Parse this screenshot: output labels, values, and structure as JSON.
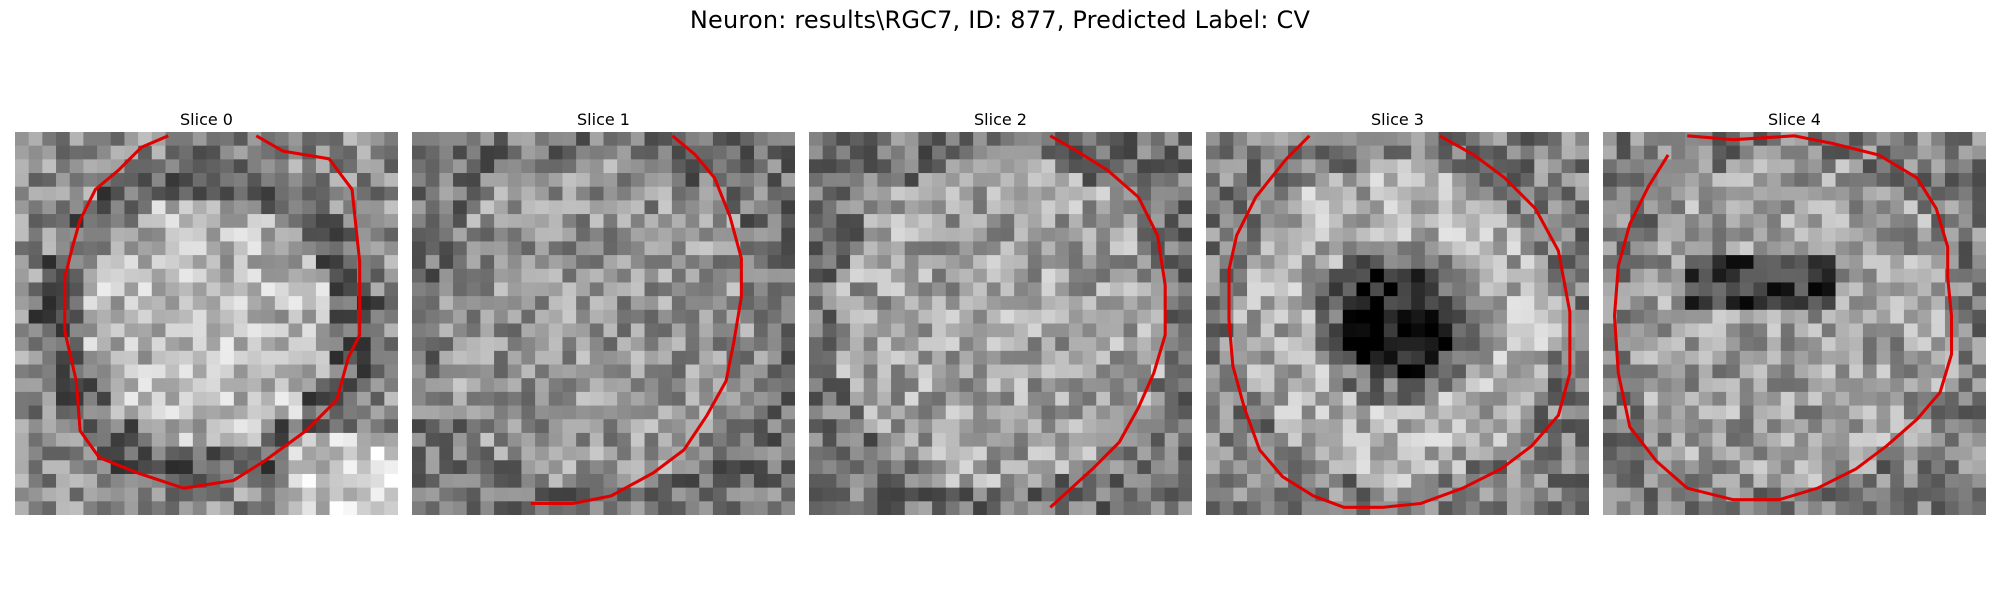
{
  "figure": {
    "title": "Neuron: results\\RGC7, ID: 877, Predicted Label: CV"
  },
  "contour_color": "#e00000",
  "panels": [
    {
      "label": "Slice 0",
      "tone": "bright-center",
      "contour": [
        [
          0.63,
          0.01
        ],
        [
          0.7,
          0.05
        ],
        [
          0.82,
          0.07
        ],
        [
          0.88,
          0.15
        ],
        [
          0.9,
          0.34
        ],
        [
          0.9,
          0.53
        ],
        [
          0.87,
          0.59
        ],
        [
          0.84,
          0.7
        ],
        [
          0.76,
          0.78
        ],
        [
          0.65,
          0.86
        ],
        [
          0.57,
          0.91
        ],
        [
          0.44,
          0.93
        ],
        [
          0.32,
          0.89
        ],
        [
          0.22,
          0.85
        ],
        [
          0.17,
          0.78
        ],
        [
          0.16,
          0.65
        ],
        [
          0.13,
          0.52
        ],
        [
          0.13,
          0.38
        ],
        [
          0.15,
          0.3
        ],
        [
          0.17,
          0.23
        ],
        [
          0.21,
          0.15
        ],
        [
          0.27,
          0.1
        ],
        [
          0.33,
          0.04
        ],
        [
          0.4,
          0.01
        ]
      ]
    },
    {
      "label": "Slice 1",
      "tone": "mottled",
      "contour": [
        [
          0.68,
          0.01
        ],
        [
          0.74,
          0.06
        ],
        [
          0.79,
          0.12
        ],
        [
          0.83,
          0.22
        ],
        [
          0.86,
          0.33
        ],
        [
          0.86,
          0.43
        ],
        [
          0.84,
          0.55
        ],
        [
          0.82,
          0.65
        ],
        [
          0.77,
          0.74
        ],
        [
          0.71,
          0.83
        ],
        [
          0.63,
          0.89
        ],
        [
          0.52,
          0.95
        ],
        [
          0.42,
          0.97
        ],
        [
          0.31,
          0.97
        ]
      ]
    },
    {
      "label": "Slice 2",
      "tone": "mottled-light",
      "contour": [
        [
          0.63,
          0.01
        ],
        [
          0.7,
          0.05
        ],
        [
          0.78,
          0.1
        ],
        [
          0.86,
          0.17
        ],
        [
          0.91,
          0.27
        ],
        [
          0.93,
          0.4
        ],
        [
          0.93,
          0.53
        ],
        [
          0.9,
          0.63
        ],
        [
          0.86,
          0.72
        ],
        [
          0.81,
          0.81
        ],
        [
          0.74,
          0.88
        ],
        [
          0.63,
          0.98
        ]
      ]
    },
    {
      "label": "Slice 3",
      "tone": "dark-center",
      "contour": [
        [
          0.61,
          0.01
        ],
        [
          0.7,
          0.06
        ],
        [
          0.78,
          0.12
        ],
        [
          0.86,
          0.2
        ],
        [
          0.92,
          0.31
        ],
        [
          0.95,
          0.47
        ],
        [
          0.95,
          0.63
        ],
        [
          0.92,
          0.74
        ],
        [
          0.85,
          0.82
        ],
        [
          0.77,
          0.88
        ],
        [
          0.67,
          0.93
        ],
        [
          0.56,
          0.97
        ],
        [
          0.46,
          0.98
        ],
        [
          0.36,
          0.98
        ],
        [
          0.28,
          0.95
        ],
        [
          0.2,
          0.9
        ],
        [
          0.14,
          0.83
        ],
        [
          0.1,
          0.72
        ],
        [
          0.07,
          0.61
        ],
        [
          0.06,
          0.49
        ],
        [
          0.06,
          0.36
        ],
        [
          0.08,
          0.27
        ],
        [
          0.13,
          0.17
        ],
        [
          0.21,
          0.07
        ],
        [
          0.27,
          0.01
        ]
      ]
    },
    {
      "label": "Slice 4",
      "tone": "dark-band",
      "contour": [
        [
          0.22,
          0.01
        ],
        [
          0.34,
          0.02
        ],
        [
          0.5,
          0.01
        ],
        [
          0.6,
          0.03
        ],
        [
          0.72,
          0.06
        ],
        [
          0.82,
          0.12
        ],
        [
          0.87,
          0.2
        ],
        [
          0.9,
          0.3
        ],
        [
          0.9,
          0.38
        ],
        [
          0.91,
          0.48
        ],
        [
          0.91,
          0.58
        ],
        [
          0.88,
          0.68
        ],
        [
          0.82,
          0.75
        ],
        [
          0.74,
          0.82
        ],
        [
          0.66,
          0.88
        ],
        [
          0.56,
          0.93
        ],
        [
          0.46,
          0.96
        ],
        [
          0.34,
          0.96
        ],
        [
          0.22,
          0.93
        ],
        [
          0.14,
          0.86
        ],
        [
          0.07,
          0.77
        ],
        [
          0.04,
          0.63
        ],
        [
          0.03,
          0.48
        ],
        [
          0.04,
          0.35
        ],
        [
          0.07,
          0.24
        ],
        [
          0.12,
          0.14
        ],
        [
          0.17,
          0.06
        ]
      ]
    }
  ]
}
